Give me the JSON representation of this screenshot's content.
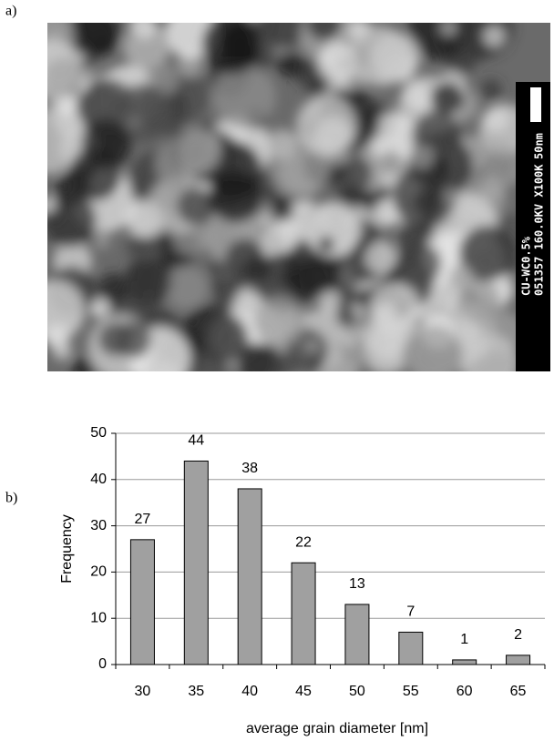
{
  "panel_labels": [
    "a)",
    "b)"
  ],
  "micrograph": {
    "caption_lines": [
      "CU-WC0.5%",
      "051357 160.0KV X100K"
    ],
    "scale_label": "50nm"
  },
  "chart_data": {
    "type": "bar",
    "x_label": "average grain diameter [nm]",
    "y_label": "Frequency",
    "categories": [
      "30",
      "35",
      "40",
      "45",
      "50",
      "55",
      "60",
      "65"
    ],
    "values": [
      27,
      44,
      38,
      22,
      13,
      7,
      1,
      2
    ],
    "color": "#a0a0a0",
    "ylim": [
      0,
      50
    ],
    "yticks": [
      0,
      10,
      20,
      30,
      40,
      50
    ],
    "grid": true
  }
}
